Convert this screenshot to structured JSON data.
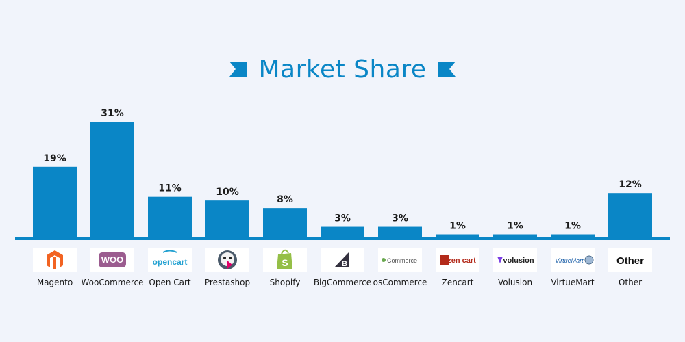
{
  "colors": {
    "bar": "#0a86c6",
    "background": "#f1f4fb",
    "baseline": "#0a86c6",
    "title": "#0a86c6"
  },
  "chart_data": {
    "type": "bar",
    "title": "Market Share",
    "categories": [
      "Magento",
      "WooCommerce",
      "Open Cart",
      "Prestashop",
      "Shopify",
      "BigCommerce",
      "osCommerce",
      "Zencart",
      "Volusion",
      "VirtueMart",
      "Other"
    ],
    "values": [
      19,
      31,
      11,
      10,
      8,
      3,
      3,
      1,
      1,
      1,
      12
    ],
    "value_labels": [
      "19%",
      "31%",
      "11%",
      "10%",
      "8%",
      "3%",
      "3%",
      "1%",
      "1%",
      "1%",
      "12%"
    ],
    "logos": [
      {
        "icon": "magento-logo-icon"
      },
      {
        "icon": "woocommerce-logo-icon",
        "text": "WOO"
      },
      {
        "icon": "opencart-logo-icon",
        "text": "opencart"
      },
      {
        "icon": "prestashop-logo-icon"
      },
      {
        "icon": "shopify-logo-icon"
      },
      {
        "icon": "bigcommerce-logo-icon"
      },
      {
        "icon": "oscommerce-logo-icon",
        "text": "Commerce"
      },
      {
        "icon": "zencart-logo-icon",
        "text": "zen cart"
      },
      {
        "icon": "volusion-logo-icon",
        "text": "volusion"
      },
      {
        "icon": "virtuemart-logo-icon",
        "text": "VirtueMart"
      },
      {
        "icon": "other-logo-icon",
        "text": "Other"
      }
    ],
    "ylim": [
      0,
      31
    ],
    "grid": false,
    "legend": "none",
    "xlabel": "",
    "ylabel": ""
  }
}
